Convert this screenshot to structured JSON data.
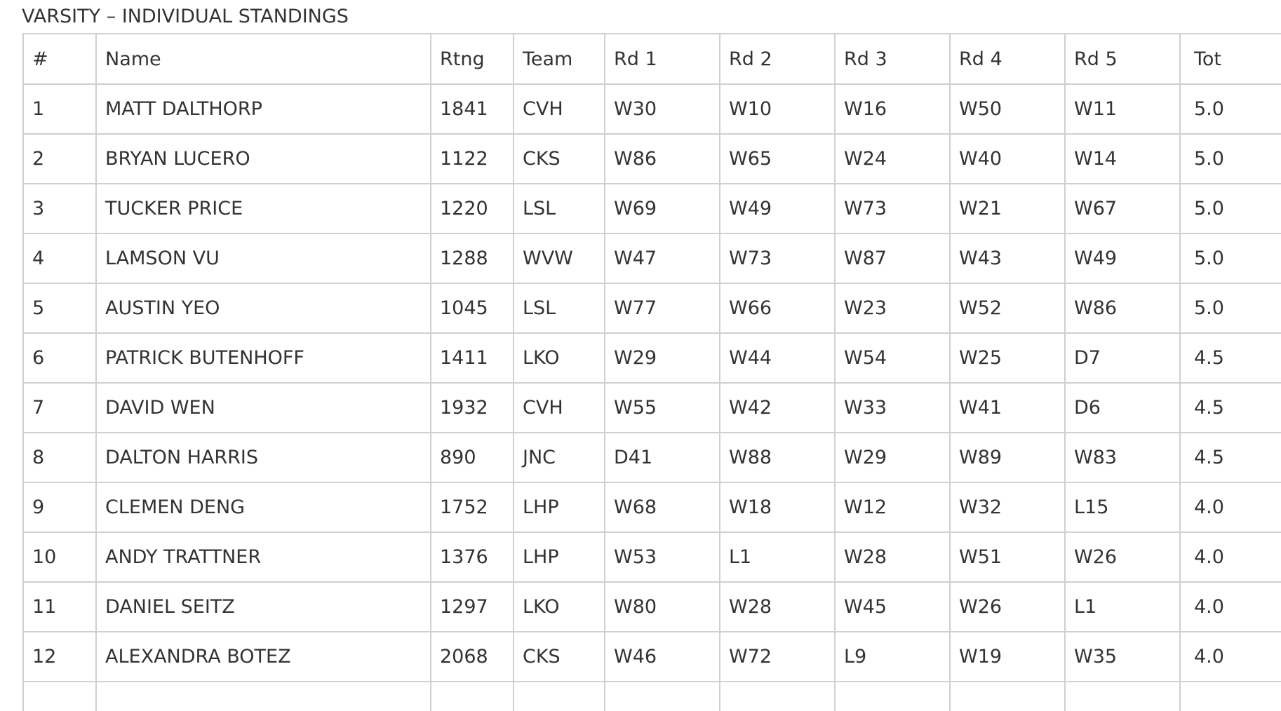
{
  "caption": "VARSITY – INDIVIDUAL STANDINGS",
  "columns": [
    "#",
    "Name",
    "Rtng",
    "Team",
    "Rd 1",
    "Rd 2",
    "Rd 3",
    "Rd 4",
    "Rd 5",
    "Tot"
  ],
  "rows": [
    [
      "1",
      "MATT DALTHORP",
      "1841",
      "CVH",
      "W30",
      "W10",
      "W16",
      "W50",
      "W11",
      "5.0"
    ],
    [
      "2",
      "BRYAN LUCERO",
      "1122",
      "CKS",
      "W86",
      "W65",
      "W24",
      "W40",
      "W14",
      "5.0"
    ],
    [
      "3",
      "TUCKER PRICE",
      "1220",
      "LSL",
      "W69",
      "W49",
      "W73",
      "W21",
      "W67",
      "5.0"
    ],
    [
      "4",
      "LAMSON VU",
      "1288",
      "WVW",
      "W47",
      "W73",
      "W87",
      "W43",
      "W49",
      "5.0"
    ],
    [
      "5",
      "AUSTIN YEO",
      "1045",
      "LSL",
      "W77",
      "W66",
      "W23",
      "W52",
      "W86",
      "5.0"
    ],
    [
      "6",
      "PATRICK BUTENHOFF",
      "1411",
      "LKO",
      "W29",
      "W44",
      "W54",
      "W25",
      "D7",
      "4.5"
    ],
    [
      "7",
      "DAVID WEN",
      "1932",
      "CVH",
      "W55",
      "W42",
      "W33",
      "W41",
      "D6",
      "4.5"
    ],
    [
      "8",
      "DALTON HARRIS",
      "890",
      "JNC",
      "D41",
      "W88",
      "W29",
      "W89",
      "W83",
      "4.5"
    ],
    [
      "9",
      "CLEMEN DENG",
      "1752",
      "LHP",
      "W68",
      "W18",
      "W12",
      "W32",
      "L15",
      "4.0"
    ],
    [
      "10",
      "ANDY TRATTNER",
      "1376",
      "LHP",
      "W53",
      "L1",
      "W28",
      "W51",
      "W26",
      "4.0"
    ],
    [
      "11",
      "DANIEL SEITZ",
      "1297",
      "LKO",
      "W80",
      "W28",
      "W45",
      "W26",
      "L1",
      "4.0"
    ],
    [
      "12",
      "ALEXANDRA BOTEZ",
      "2068",
      "CKS",
      "W46",
      "W72",
      "L9",
      "W19",
      "W35",
      "4.0"
    ],
    [
      "",
      "",
      "",
      "",
      "",
      "",
      "",
      "",
      "",
      ""
    ]
  ]
}
